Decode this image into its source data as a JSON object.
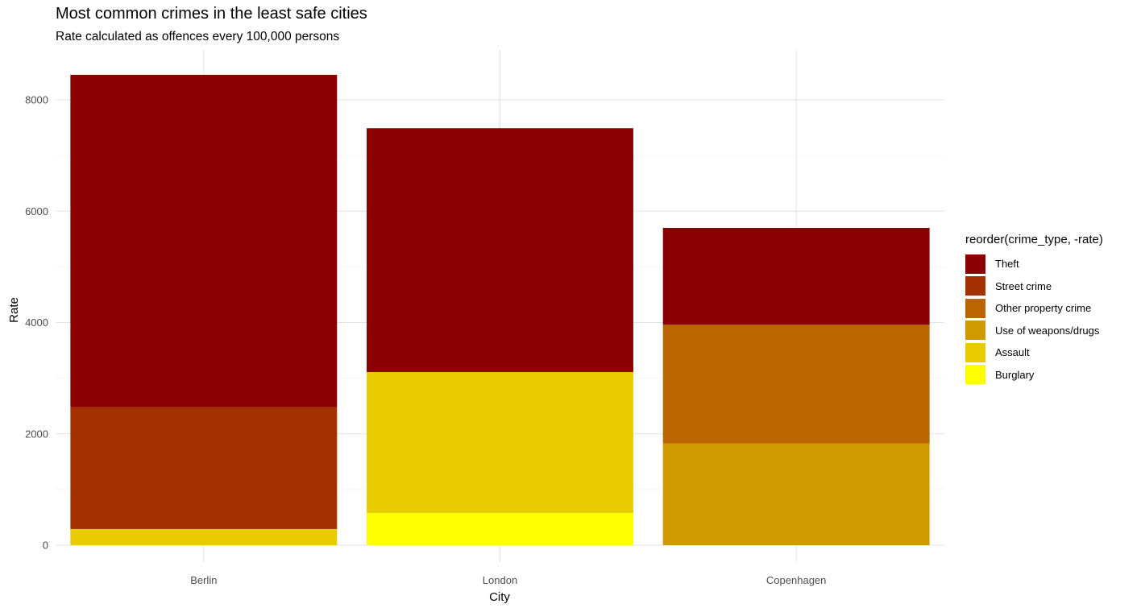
{
  "chart_data": {
    "type": "bar",
    "stacked": true,
    "title": "Most common crimes in the least safe cities",
    "subtitle": "Rate calculated as offences every 100,000 persons",
    "xlabel": "City",
    "ylabel": "Rate",
    "categories": [
      "Berlin",
      "London",
      "Copenhagen"
    ],
    "ylim": [
      0,
      8800
    ],
    "yticks": [
      0,
      2000,
      4000,
      6000,
      8000
    ],
    "ytick_labels": [
      "0",
      "2000",
      "4000",
      "6000",
      "8000"
    ],
    "grid": true,
    "legend_title": "reorder(crime_type, -rate)",
    "legend_position": "right",
    "series": [
      {
        "name": "Theft",
        "color": "#8B0000",
        "values": [
          5970,
          4380,
          1740
        ]
      },
      {
        "name": "Street crime",
        "color": "#A33200",
        "values": [
          2190,
          0,
          0
        ]
      },
      {
        "name": "Other property crime",
        "color": "#B96500",
        "values": [
          0,
          0,
          2130
        ]
      },
      {
        "name": "Use of weapons/drugs",
        "color": "#D19900",
        "values": [
          0,
          0,
          1830
        ]
      },
      {
        "name": "Assault",
        "color": "#E8CC00",
        "values": [
          290,
          2530,
          0
        ]
      },
      {
        "name": "Burglary",
        "color": "#FFFF00",
        "values": [
          0,
          580,
          0
        ]
      }
    ]
  }
}
